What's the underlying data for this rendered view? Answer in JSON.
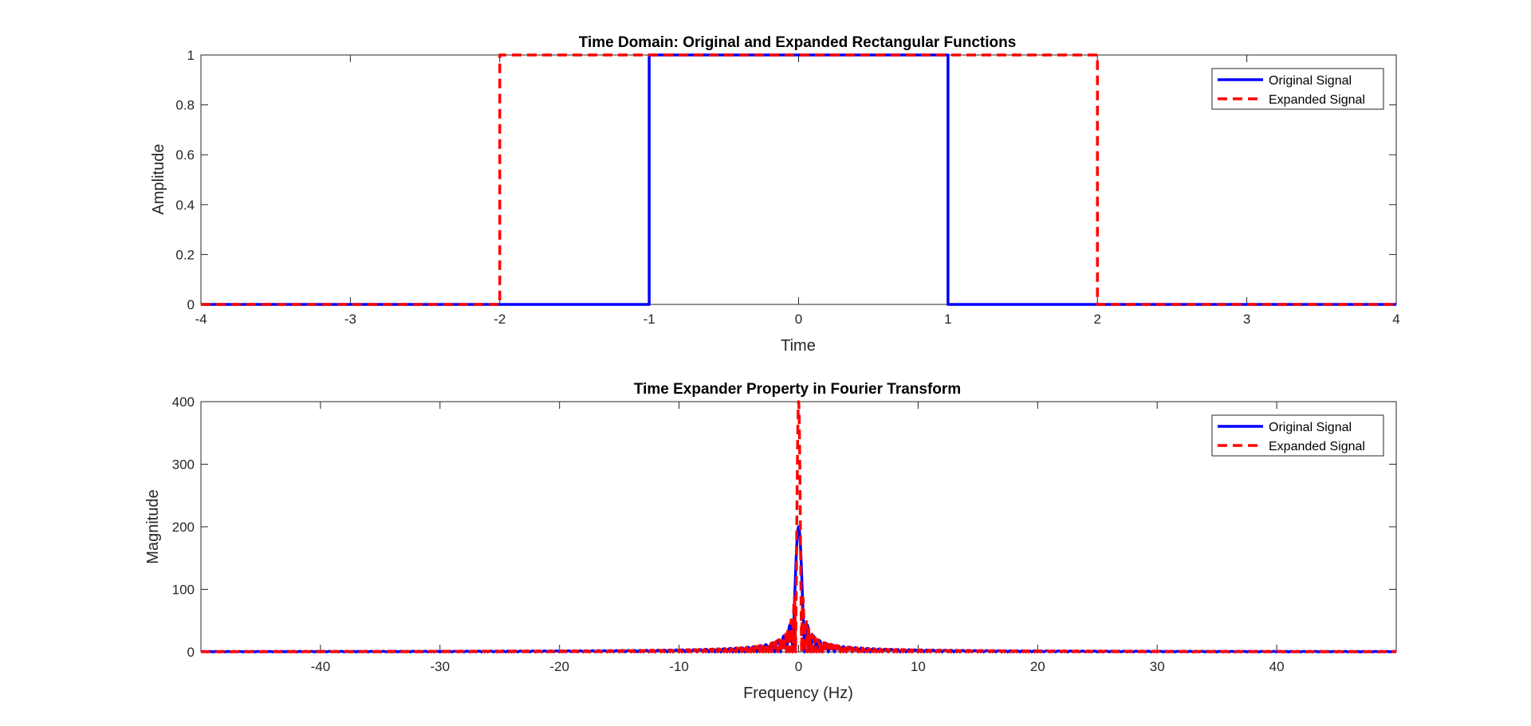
{
  "chart_data": [
    {
      "type": "line",
      "title": "Time Domain: Original and Expanded Rectangular Functions",
      "xlabel": "Time",
      "ylabel": "Amplitude",
      "xlim": [
        -4,
        4
      ],
      "ylim": [
        0,
        1
      ],
      "xticks": [
        "-4",
        "-3",
        "-2",
        "-1",
        "0",
        "1",
        "2",
        "3",
        "4"
      ],
      "yticks": [
        "0",
        "0.2",
        "0.4",
        "0.6",
        "0.8",
        "1"
      ],
      "grid": false,
      "legend_position": "top-right",
      "series": [
        {
          "name": "Original Signal",
          "color": "#0000ff",
          "style": "solid",
          "x": [
            -4,
            -1,
            -1,
            1,
            1,
            4
          ],
          "y": [
            0,
            0,
            1,
            1,
            0,
            0
          ]
        },
        {
          "name": "Expanded Signal",
          "color": "#ff0000",
          "style": "dashed",
          "x": [
            -4,
            -2,
            -2,
            2,
            2,
            4
          ],
          "y": [
            0,
            0,
            1,
            1,
            0,
            0
          ]
        }
      ]
    },
    {
      "type": "line",
      "title": "Time Expander Property in Fourier Transform",
      "xlabel": "Frequency (Hz)",
      "ylabel": "Magnitude",
      "xlim": [
        -50,
        50
      ],
      "ylim": [
        0,
        400
      ],
      "xticks": [
        "-40",
        "-30",
        "-20",
        "-10",
        "0",
        "10",
        "20",
        "30",
        "40"
      ],
      "yticks": [
        "0",
        "100",
        "200",
        "300",
        "400"
      ],
      "grid": false,
      "legend_position": "top-right",
      "series": [
        {
          "name": "Original Signal",
          "color": "#0000ff",
          "style": "solid",
          "peak": 200,
          "sinc_zero_spacing_hz": 0.5
        },
        {
          "name": "Expanded Signal",
          "color": "#ff0000",
          "style": "dashed",
          "peak": 400,
          "sinc_zero_spacing_hz": 0.25
        }
      ]
    }
  ]
}
